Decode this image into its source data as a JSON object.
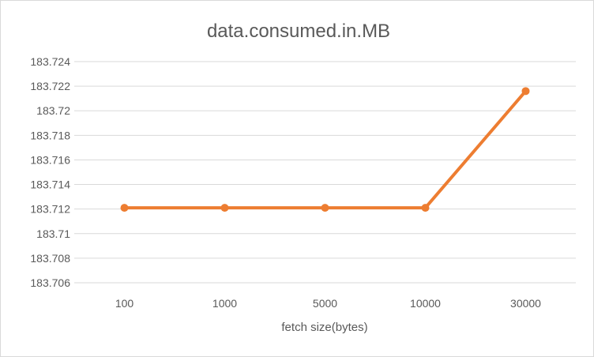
{
  "chart_data": {
    "type": "line",
    "title": "data.consumed.in.MB",
    "xlabel": "fetch size(bytes)",
    "ylabel": "",
    "categories": [
      "100",
      "1000",
      "5000",
      "10000",
      "30000"
    ],
    "series": [
      {
        "values": [
          183.7121,
          183.7121,
          183.7121,
          183.7121,
          183.7216
        ]
      }
    ],
    "ylim": [
      183.706,
      183.724
    ],
    "yticks": [
      "183.706",
      "183.708",
      "183.71",
      "183.712",
      "183.714",
      "183.716",
      "183.718",
      "183.72",
      "183.722",
      "183.724"
    ],
    "grid": true,
    "legend": "none",
    "colors": {
      "series": "#ed7d31",
      "grid": "#d9d9d9",
      "text": "#595959"
    }
  }
}
